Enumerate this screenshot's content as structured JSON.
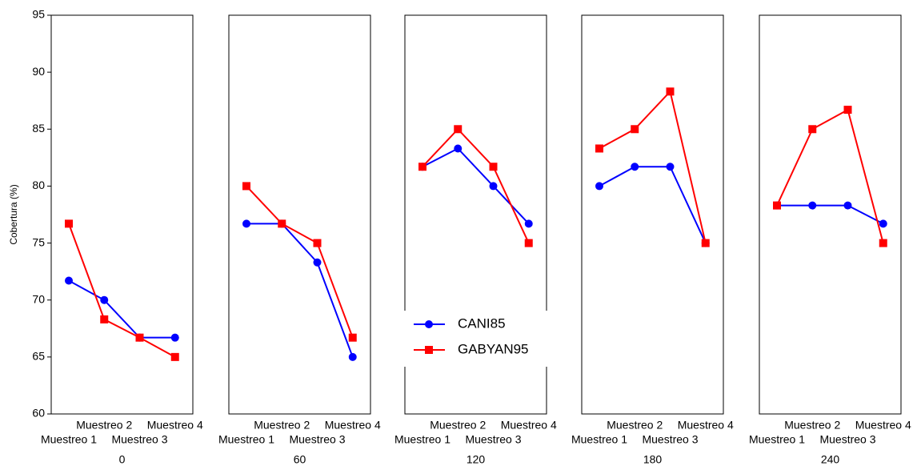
{
  "chart_data": {
    "type": "line",
    "ylabel": "Cobertura (%)",
    "ylim": [
      60,
      95
    ],
    "yticks": [
      60,
      65,
      70,
      75,
      80,
      85,
      90,
      95
    ],
    "categories": [
      "Muestreo 1",
      "Muestreo 2",
      "Muestreo 3",
      "Muestreo 4"
    ],
    "panels": [
      "0",
      "60",
      "120",
      "180",
      "240"
    ],
    "series": [
      {
        "name": "CANI85",
        "color": "#0000ff",
        "marker": "circle",
        "values": [
          [
            71.7,
            70.0,
            66.7,
            66.7
          ],
          [
            76.7,
            76.7,
            73.3,
            65.0
          ],
          [
            81.7,
            83.3,
            80.0,
            76.7
          ],
          [
            80.0,
            81.7,
            81.7,
            75.0
          ],
          [
            78.3,
            78.3,
            78.3,
            76.7
          ]
        ]
      },
      {
        "name": "GABYAN95",
        "color": "#ff0000",
        "marker": "square",
        "values": [
          [
            76.7,
            68.3,
            66.7,
            65.0
          ],
          [
            80.0,
            76.7,
            75.0,
            66.7
          ],
          [
            81.7,
            85.0,
            81.7,
            75.0
          ],
          [
            83.3,
            85.0,
            88.3,
            75.0
          ],
          [
            78.3,
            85.0,
            86.7,
            75.0
          ]
        ]
      }
    ]
  }
}
